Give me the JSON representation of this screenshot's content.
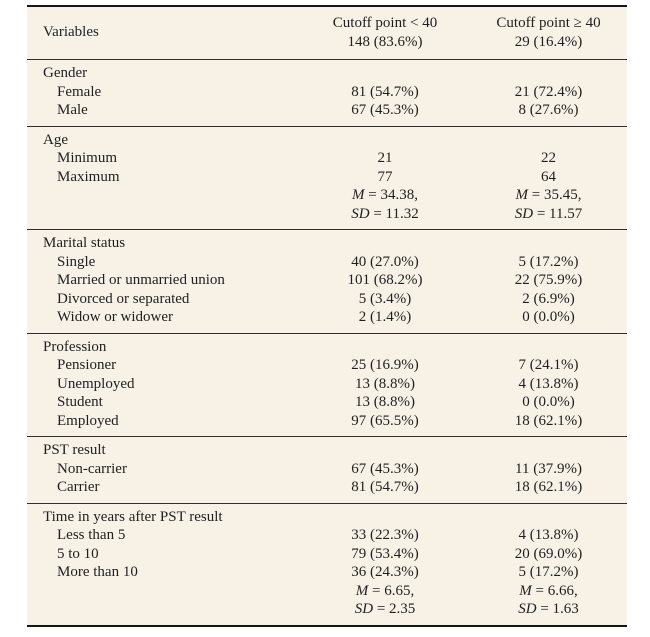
{
  "colors": {
    "table_background": "#f8f2e6",
    "rule_heavy": "#161616",
    "rule_light": "#2f2f2f",
    "text": "#1d1f24",
    "page_background": "#ffffff"
  },
  "table": {
    "header": {
      "variables_label": "Variables",
      "col2": {
        "line1": "Cutoff point < 40",
        "line2": "148 (83.6%)"
      },
      "col3": {
        "line1": "Cutoff point ≥ 40",
        "line2": "29 (16.4%)"
      }
    },
    "sections": [
      {
        "title": "Gender",
        "rows": [
          {
            "label": "Female",
            "col2": "81 (54.7%)",
            "col3": "21 (72.4%)"
          },
          {
            "label": "Male",
            "col2": "67 (45.3%)",
            "col3": "8 (27.6%)"
          }
        ]
      },
      {
        "title": "Age",
        "rows": [
          {
            "label": "Minimum",
            "col2": "21",
            "col3": "22"
          },
          {
            "label": "Maximum",
            "col2": "77",
            "col3": "64"
          },
          {
            "label": "",
            "c2_label": "M",
            "c2_value": " = 34.38,",
            "c3_label": "M",
            "c3_value": " = 35.45,"
          },
          {
            "label": "",
            "c2_label": "SD",
            "c2_value": " = 11.32",
            "c3_label": "SD",
            "c3_value": " = 11.57"
          }
        ]
      },
      {
        "title": "Marital status",
        "rows": [
          {
            "label": "Single",
            "col2": "40 (27.0%)",
            "col3": "5 (17.2%)"
          },
          {
            "label": "Married or unmarried union",
            "col2": "101 (68.2%)",
            "col3": "22 (75.9%)"
          },
          {
            "label": "Divorced or separated",
            "col2": "5 (3.4%)",
            "col3": "2 (6.9%)"
          },
          {
            "label": "Widow or widower",
            "col2": "2 (1.4%)",
            "col3": "0 (0.0%)"
          }
        ]
      },
      {
        "title": "Profession",
        "rows": [
          {
            "label": "Pensioner",
            "col2": "25 (16.9%)",
            "col3": "7 (24.1%)"
          },
          {
            "label": "Unemployed",
            "col2": "13 (8.8%)",
            "col3": "4 (13.8%)"
          },
          {
            "label": "Student",
            "col2": "13 (8.8%)",
            "col3": "0 (0.0%)"
          },
          {
            "label": "Employed",
            "col2": "97 (65.5%)",
            "col3": "18 (62.1%)"
          }
        ]
      },
      {
        "title": "PST result",
        "rows": [
          {
            "label": "Non-carrier",
            "col2": "67 (45.3%)",
            "col3": "11 (37.9%)"
          },
          {
            "label": "Carrier",
            "col2": "81 (54.7%)",
            "col3": "18 (62.1%)"
          }
        ]
      },
      {
        "title": "Time in years after PST result",
        "rows": [
          {
            "label": "Less than 5",
            "col2": "33 (22.3%)",
            "col3": "4 (13.8%)"
          },
          {
            "label": "5 to 10",
            "col2": "79 (53.4%)",
            "col3": "20 (69.0%)"
          },
          {
            "label": "More than 10",
            "col2": "36 (24.3%)",
            "col3": "5 (17.2%)"
          },
          {
            "label": "",
            "c2_label": "M",
            "c2_value": " = 6.65,",
            "c3_label": "M",
            "c3_value": " = 6.66,"
          },
          {
            "label": "",
            "c2_label": "SD",
            "c2_value": " = 2.35",
            "c3_label": "SD",
            "c3_value": " = 1.63"
          }
        ]
      }
    ]
  }
}
